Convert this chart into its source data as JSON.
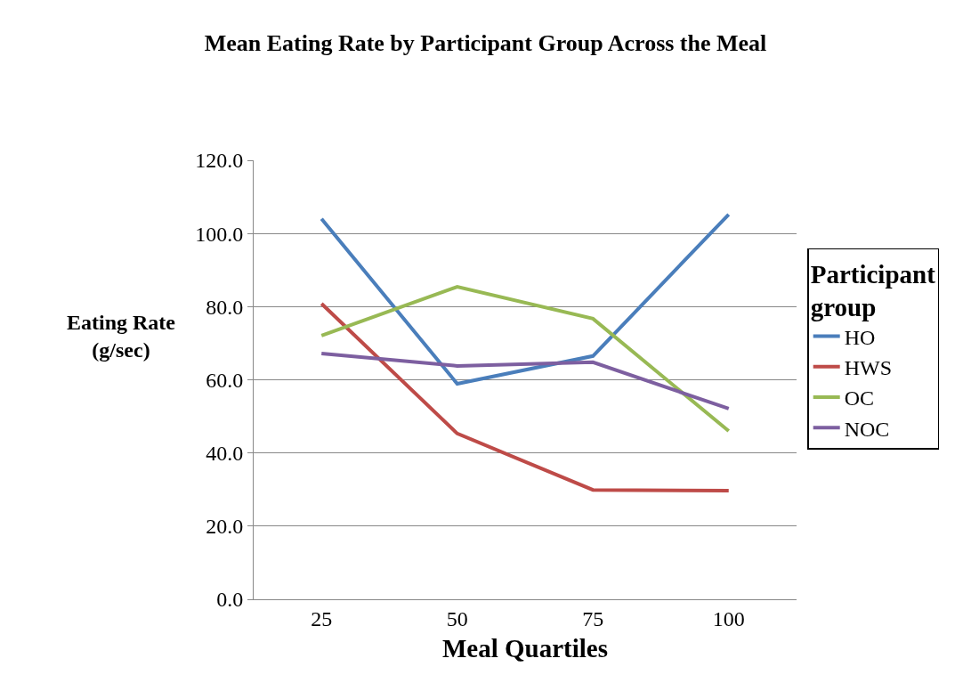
{
  "chart_data": {
    "type": "line",
    "title": "Mean Eating Rate by Participant Group Across the Meal",
    "xlabel": "Meal Quartiles",
    "ylabel": "Eating Rate\n(g/sec)",
    "legend_title": "Participant group",
    "categories": [
      "25",
      "50",
      "75",
      "100"
    ],
    "series": [
      {
        "name": "HO",
        "color": "#4a7ebb",
        "values": [
          104.0,
          58.9,
          66.5,
          105.2
        ]
      },
      {
        "name": "HWS",
        "color": "#be4b48",
        "values": [
          80.8,
          45.3,
          29.9,
          29.7
        ]
      },
      {
        "name": "OC",
        "color": "#98b954",
        "values": [
          72.1,
          85.4,
          76.7,
          46.0
        ]
      },
      {
        "name": "NOC",
        "color": "#7d5fa0",
        "values": [
          67.2,
          63.8,
          64.8,
          52.1
        ]
      }
    ],
    "ylim": [
      0,
      120
    ],
    "yticks": [
      {
        "value": 0,
        "label": "0.0"
      },
      {
        "value": 20,
        "label": "20.0"
      },
      {
        "value": 40,
        "label": "40.0"
      },
      {
        "value": 60,
        "label": "60.0"
      },
      {
        "value": 80,
        "label": "80.0"
      },
      {
        "value": 100,
        "label": "100.0"
      },
      {
        "value": 120,
        "label": "120.0"
      }
    ],
    "grid": "y",
    "legend": "right",
    "marker": "none",
    "line_style": "solid"
  }
}
